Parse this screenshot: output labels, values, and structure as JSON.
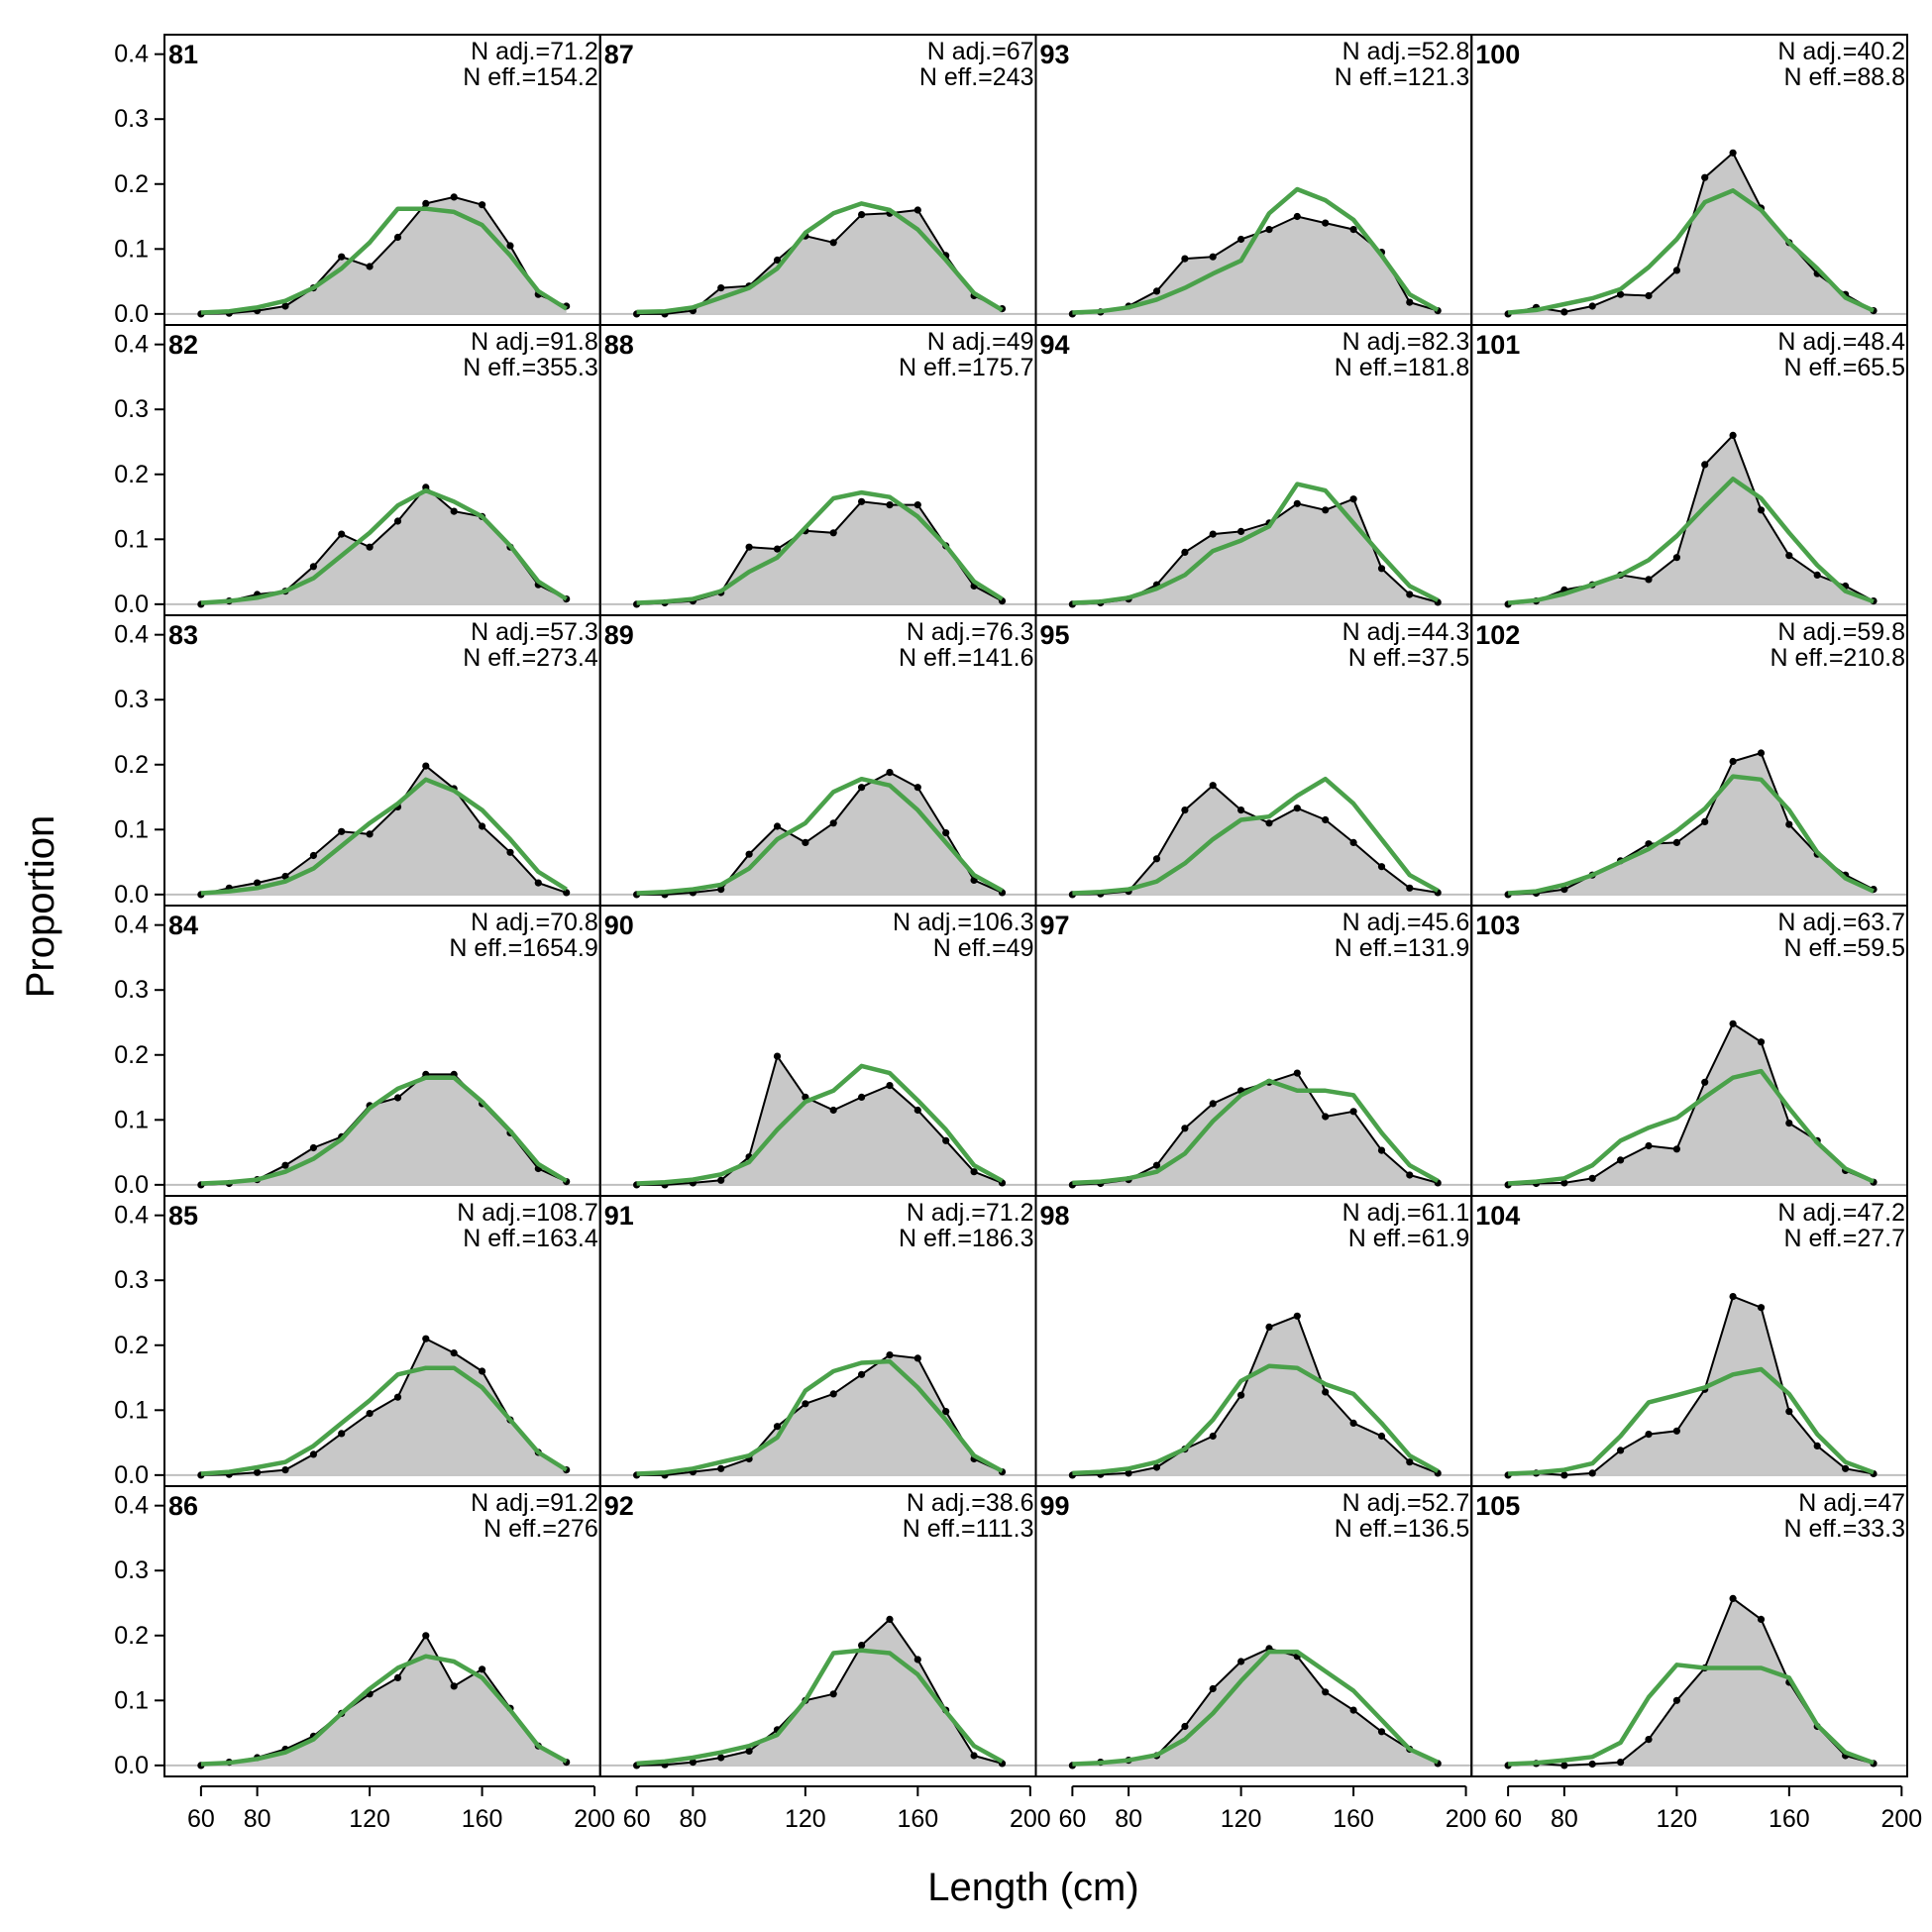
{
  "chart_data": {
    "type": "line",
    "xlabel": "Length (cm)",
    "ylabel": "Proportion",
    "xlim": [
      47,
      202
    ],
    "ylim": [
      -0.017,
      0.43
    ],
    "x_ticks": [
      60,
      80,
      120,
      160,
      200
    ],
    "y_ticks": [
      0.0,
      0.1,
      0.2,
      0.3,
      0.4
    ],
    "y_tick_labels": [
      "0.0",
      "0.1",
      "0.2",
      "0.3",
      "0.4"
    ],
    "layout": "grid 6 rows x 4 columns, column-major order",
    "x": [
      60,
      70,
      80,
      90,
      100,
      110,
      120,
      130,
      140,
      150,
      160,
      170,
      180,
      190
    ],
    "colors": {
      "observed_fill": "#c8c8c8",
      "observed_line": "#000000",
      "expected_line": "#4aa14a",
      "zero_line": "#bfbfbf"
    },
    "panels": [
      {
        "id": "81",
        "n_adj": "N adj.=71.2",
        "n_eff": "N eff.=154.2",
        "observed": [
          0.0,
          0.001,
          0.005,
          0.012,
          0.04,
          0.088,
          0.073,
          0.118,
          0.17,
          0.18,
          0.168,
          0.105,
          0.03,
          0.012
        ],
        "expected": [
          0.002,
          0.004,
          0.01,
          0.02,
          0.04,
          0.07,
          0.11,
          0.162,
          0.162,
          0.157,
          0.137,
          0.09,
          0.035,
          0.008
        ]
      },
      {
        "id": "82",
        "n_adj": "N adj.=91.8",
        "n_eff": "N eff.=355.3",
        "observed": [
          0.0,
          0.005,
          0.015,
          0.02,
          0.058,
          0.108,
          0.088,
          0.128,
          0.18,
          0.143,
          0.135,
          0.088,
          0.03,
          0.008
        ],
        "expected": [
          0.002,
          0.005,
          0.01,
          0.02,
          0.04,
          0.075,
          0.11,
          0.152,
          0.175,
          0.158,
          0.135,
          0.09,
          0.035,
          0.008
        ]
      },
      {
        "id": "83",
        "n_adj": "N adj.=57.3",
        "n_eff": "N eff.=273.4",
        "observed": [
          0.0,
          0.01,
          0.018,
          0.028,
          0.06,
          0.097,
          0.093,
          0.135,
          0.198,
          0.163,
          0.105,
          0.065,
          0.018,
          0.003
        ],
        "expected": [
          0.002,
          0.005,
          0.01,
          0.02,
          0.04,
          0.075,
          0.11,
          0.14,
          0.177,
          0.16,
          0.13,
          0.085,
          0.035,
          0.008
        ]
      },
      {
        "id": "84",
        "n_adj": "N adj.=70.8",
        "n_eff": "N eff.=1654.9",
        "observed": [
          0.0,
          0.002,
          0.008,
          0.03,
          0.057,
          0.074,
          0.122,
          0.134,
          0.17,
          0.17,
          0.125,
          0.08,
          0.025,
          0.005
        ],
        "expected": [
          0.002,
          0.004,
          0.008,
          0.02,
          0.04,
          0.07,
          0.118,
          0.148,
          0.165,
          0.165,
          0.128,
          0.083,
          0.032,
          0.006
        ]
      },
      {
        "id": "85",
        "n_adj": "N adj.=108.7",
        "n_eff": "N eff.=163.4",
        "observed": [
          0.0,
          0.001,
          0.004,
          0.008,
          0.032,
          0.064,
          0.095,
          0.12,
          0.21,
          0.188,
          0.16,
          0.085,
          0.035,
          0.008
        ],
        "expected": [
          0.002,
          0.005,
          0.012,
          0.02,
          0.045,
          0.08,
          0.115,
          0.155,
          0.165,
          0.165,
          0.135,
          0.085,
          0.035,
          0.008
        ]
      },
      {
        "id": "86",
        "n_adj": "N adj.=91.2",
        "n_eff": "N eff.=276",
        "observed": [
          0.0,
          0.005,
          0.012,
          0.025,
          0.045,
          0.08,
          0.11,
          0.135,
          0.2,
          0.122,
          0.148,
          0.088,
          0.03,
          0.005
        ],
        "expected": [
          0.002,
          0.004,
          0.01,
          0.02,
          0.04,
          0.08,
          0.118,
          0.15,
          0.168,
          0.16,
          0.135,
          0.085,
          0.03,
          0.006
        ]
      },
      {
        "id": "87",
        "n_adj": "N adj.=67",
        "n_eff": "N eff.=243",
        "observed": [
          0.0,
          0.0,
          0.005,
          0.04,
          0.043,
          0.083,
          0.12,
          0.11,
          0.153,
          0.155,
          0.16,
          0.09,
          0.028,
          0.008
        ],
        "expected": [
          0.003,
          0.004,
          0.01,
          0.025,
          0.04,
          0.07,
          0.125,
          0.155,
          0.17,
          0.16,
          0.13,
          0.083,
          0.032,
          0.006
        ]
      },
      {
        "id": "88",
        "n_adj": "N adj.=49",
        "n_eff": "N eff.=175.7",
        "observed": [
          0.0,
          0.002,
          0.005,
          0.018,
          0.088,
          0.085,
          0.113,
          0.11,
          0.158,
          0.153,
          0.153,
          0.09,
          0.028,
          0.005
        ],
        "expected": [
          0.002,
          0.004,
          0.008,
          0.02,
          0.05,
          0.072,
          0.118,
          0.163,
          0.172,
          0.165,
          0.135,
          0.09,
          0.035,
          0.008
        ]
      },
      {
        "id": "89",
        "n_adj": "N adj.=76.3",
        "n_eff": "N eff.=141.6",
        "observed": [
          0.0,
          0.0,
          0.003,
          0.008,
          0.062,
          0.105,
          0.08,
          0.11,
          0.165,
          0.188,
          0.165,
          0.095,
          0.022,
          0.003
        ],
        "expected": [
          0.002,
          0.004,
          0.008,
          0.015,
          0.04,
          0.085,
          0.11,
          0.158,
          0.178,
          0.168,
          0.13,
          0.08,
          0.03,
          0.006
        ]
      },
      {
        "id": "90",
        "n_adj": "N adj.=106.3",
        "n_eff": "N eff.=49",
        "observed": [
          0.0,
          0.0,
          0.003,
          0.007,
          0.043,
          0.198,
          0.135,
          0.115,
          0.135,
          0.153,
          0.115,
          0.068,
          0.02,
          0.003
        ],
        "expected": [
          0.002,
          0.004,
          0.008,
          0.016,
          0.035,
          0.085,
          0.128,
          0.145,
          0.183,
          0.172,
          0.13,
          0.085,
          0.03,
          0.006
        ]
      },
      {
        "id": "91",
        "n_adj": "N adj.=71.2",
        "n_eff": "N eff.=186.3",
        "observed": [
          0.0,
          0.0,
          0.005,
          0.01,
          0.025,
          0.075,
          0.11,
          0.125,
          0.155,
          0.185,
          0.18,
          0.098,
          0.025,
          0.005
        ],
        "expected": [
          0.002,
          0.004,
          0.01,
          0.02,
          0.03,
          0.058,
          0.13,
          0.16,
          0.173,
          0.175,
          0.135,
          0.085,
          0.03,
          0.006
        ]
      },
      {
        "id": "92",
        "n_adj": "N adj.=38.6",
        "n_eff": "N eff.=111.3",
        "observed": [
          0.0,
          0.001,
          0.005,
          0.012,
          0.022,
          0.055,
          0.1,
          0.11,
          0.185,
          0.225,
          0.163,
          0.085,
          0.015,
          0.003
        ],
        "expected": [
          0.003,
          0.006,
          0.012,
          0.02,
          0.03,
          0.047,
          0.1,
          0.173,
          0.177,
          0.173,
          0.14,
          0.083,
          0.03,
          0.006
        ]
      },
      {
        "id": "93",
        "n_adj": "N adj.=52.8",
        "n_eff": "N eff.=121.3",
        "observed": [
          0.0,
          0.003,
          0.012,
          0.035,
          0.085,
          0.088,
          0.115,
          0.13,
          0.15,
          0.14,
          0.13,
          0.095,
          0.018,
          0.005
        ],
        "expected": [
          0.002,
          0.004,
          0.01,
          0.022,
          0.04,
          0.062,
          0.082,
          0.155,
          0.192,
          0.175,
          0.145,
          0.09,
          0.03,
          0.006
        ]
      },
      {
        "id": "94",
        "n_adj": "N adj.=82.3",
        "n_eff": "N eff.=181.8",
        "observed": [
          0.0,
          0.002,
          0.008,
          0.03,
          0.08,
          0.108,
          0.112,
          0.125,
          0.155,
          0.145,
          0.162,
          0.055,
          0.015,
          0.003
        ],
        "expected": [
          0.002,
          0.004,
          0.01,
          0.024,
          0.045,
          0.082,
          0.098,
          0.12,
          0.185,
          0.175,
          0.125,
          0.075,
          0.028,
          0.006
        ]
      },
      {
        "id": "95",
        "n_adj": "N adj.=44.3",
        "n_eff": "N eff.=37.5",
        "observed": [
          0.0,
          0.001,
          0.005,
          0.055,
          0.13,
          0.168,
          0.13,
          0.11,
          0.133,
          0.115,
          0.08,
          0.043,
          0.01,
          0.003
        ],
        "expected": [
          0.002,
          0.004,
          0.008,
          0.02,
          0.048,
          0.085,
          0.115,
          0.12,
          0.152,
          0.178,
          0.14,
          0.085,
          0.03,
          0.006
        ]
      },
      {
        "id": "97",
        "n_adj": "N adj.=45.6",
        "n_eff": "N eff.=131.9",
        "observed": [
          0.0,
          0.002,
          0.008,
          0.03,
          0.087,
          0.125,
          0.145,
          0.158,
          0.172,
          0.105,
          0.113,
          0.053,
          0.015,
          0.003
        ],
        "expected": [
          0.003,
          0.005,
          0.01,
          0.02,
          0.048,
          0.098,
          0.138,
          0.16,
          0.145,
          0.145,
          0.138,
          0.08,
          0.03,
          0.006
        ]
      },
      {
        "id": "98",
        "n_adj": "N adj.=61.1",
        "n_eff": "N eff.=61.9",
        "observed": [
          0.0,
          0.001,
          0.003,
          0.012,
          0.04,
          0.06,
          0.123,
          0.228,
          0.245,
          0.128,
          0.08,
          0.06,
          0.02,
          0.003
        ],
        "expected": [
          0.003,
          0.005,
          0.01,
          0.02,
          0.04,
          0.085,
          0.145,
          0.168,
          0.165,
          0.14,
          0.125,
          0.08,
          0.03,
          0.006
        ]
      },
      {
        "id": "99",
        "n_adj": "N adj.=52.7",
        "n_eff": "N eff.=136.5",
        "observed": [
          0.0,
          0.005,
          0.008,
          0.015,
          0.06,
          0.118,
          0.16,
          0.18,
          0.168,
          0.113,
          0.085,
          0.052,
          0.025,
          0.003
        ],
        "expected": [
          0.002,
          0.004,
          0.008,
          0.016,
          0.04,
          0.08,
          0.13,
          0.175,
          0.175,
          0.145,
          0.115,
          0.07,
          0.025,
          0.005
        ]
      },
      {
        "id": "100",
        "n_adj": "N adj.=40.2",
        "n_eff": "N eff.=88.8",
        "observed": [
          0.0,
          0.01,
          0.003,
          0.012,
          0.03,
          0.028,
          0.067,
          0.21,
          0.248,
          0.163,
          0.11,
          0.062,
          0.03,
          0.005
        ],
        "expected": [
          0.002,
          0.006,
          0.015,
          0.024,
          0.038,
          0.072,
          0.115,
          0.172,
          0.19,
          0.16,
          0.11,
          0.07,
          0.025,
          0.005
        ]
      },
      {
        "id": "101",
        "n_adj": "N adj.=48.4",
        "n_eff": "N eff.=65.5",
        "observed": [
          0.0,
          0.005,
          0.022,
          0.03,
          0.045,
          0.038,
          0.072,
          0.215,
          0.26,
          0.145,
          0.075,
          0.045,
          0.028,
          0.005
        ],
        "expected": [
          0.002,
          0.006,
          0.016,
          0.03,
          0.045,
          0.068,
          0.105,
          0.15,
          0.193,
          0.163,
          0.11,
          0.06,
          0.02,
          0.004
        ]
      },
      {
        "id": "102",
        "n_adj": "N adj.=59.8",
        "n_eff": "N eff.=210.8",
        "observed": [
          0.0,
          0.002,
          0.008,
          0.03,
          0.052,
          0.078,
          0.08,
          0.112,
          0.205,
          0.218,
          0.108,
          0.062,
          0.03,
          0.008
        ],
        "expected": [
          0.002,
          0.005,
          0.015,
          0.03,
          0.05,
          0.07,
          0.098,
          0.132,
          0.182,
          0.177,
          0.13,
          0.065,
          0.025,
          0.005
        ]
      },
      {
        "id": "103",
        "n_adj": "N adj.=63.7",
        "n_eff": "N eff.=59.5",
        "observed": [
          0.0,
          0.002,
          0.003,
          0.01,
          0.038,
          0.06,
          0.055,
          0.158,
          0.248,
          0.22,
          0.095,
          0.068,
          0.022,
          0.004
        ],
        "expected": [
          0.002,
          0.005,
          0.01,
          0.03,
          0.068,
          0.088,
          0.103,
          0.135,
          0.165,
          0.175,
          0.118,
          0.065,
          0.025,
          0.005
        ]
      },
      {
        "id": "104",
        "n_adj": "N adj.=47.2",
        "n_eff": "N eff.=27.7",
        "observed": [
          0.0,
          0.003,
          0.0,
          0.003,
          0.038,
          0.063,
          0.068,
          0.132,
          0.275,
          0.258,
          0.098,
          0.045,
          0.01,
          0.002
        ],
        "expected": [
          0.002,
          0.004,
          0.008,
          0.018,
          0.06,
          0.112,
          0.123,
          0.135,
          0.155,
          0.163,
          0.125,
          0.063,
          0.02,
          0.004
        ]
      },
      {
        "id": "105",
        "n_adj": "N adj.=47",
        "n_eff": "N eff.=33.3",
        "observed": [
          0.0,
          0.003,
          0.0,
          0.002,
          0.005,
          0.04,
          0.1,
          0.15,
          0.257,
          0.225,
          0.128,
          0.06,
          0.015,
          0.003
        ],
        "expected": [
          0.002,
          0.004,
          0.008,
          0.013,
          0.035,
          0.105,
          0.155,
          0.15,
          0.15,
          0.15,
          0.135,
          0.062,
          0.02,
          0.004
        ]
      }
    ]
  }
}
